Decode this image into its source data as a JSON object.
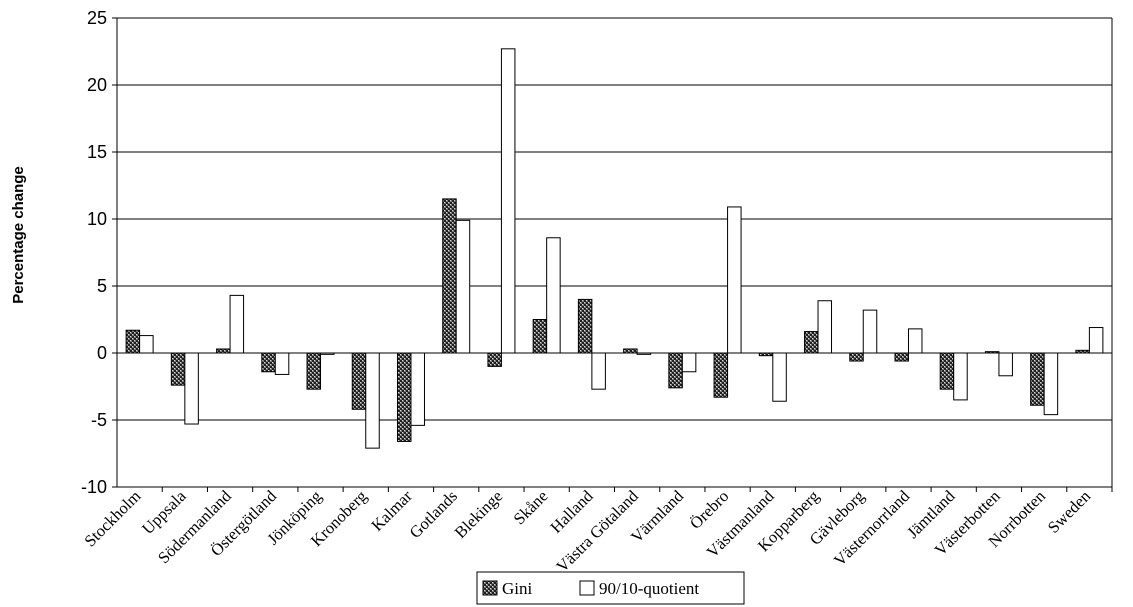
{
  "chart_data": {
    "type": "bar",
    "title": "",
    "xlabel": "",
    "ylabel": "Percentage change",
    "ylim": [
      -10,
      25
    ],
    "yticks": [
      -10,
      -5,
      0,
      5,
      10,
      15,
      20,
      25
    ],
    "grid": true,
    "legend_position": "bottom",
    "categories": [
      "Stockholm",
      "Uppsala",
      "Södermanland",
      "Östergötland",
      "Jönköping",
      "Kronoberg",
      "Kalmar",
      "Gotlands",
      "Blekinge",
      "Skåne",
      "Halland",
      "Västra Götaland",
      "Värmland",
      "Örebro",
      "Västmanland",
      "Kopparberg",
      "Gävleborg",
      "Västernorrland",
      "Jämtland",
      "Västerbotten",
      "Norrbotten",
      "Sweden"
    ],
    "series": [
      {
        "name": "Gini",
        "pattern": "crosshatch-dark",
        "values": [
          1.7,
          -2.4,
          0.3,
          -1.4,
          -2.7,
          -4.2,
          -6.6,
          11.5,
          -1.0,
          2.5,
          4.0,
          0.3,
          -2.6,
          -3.3,
          -0.2,
          1.6,
          -0.6,
          -0.6,
          -2.7,
          0.1,
          -3.9,
          0.2
        ]
      },
      {
        "name": "90/10-quotient",
        "pattern": "white",
        "values": [
          1.3,
          -5.3,
          4.3,
          -1.6,
          -0.1,
          -7.1,
          -5.4,
          9.9,
          22.7,
          8.6,
          -2.7,
          -0.1,
          -1.4,
          10.9,
          -3.6,
          3.9,
          3.2,
          1.8,
          -3.5,
          -1.7,
          -4.6,
          1.9
        ]
      }
    ]
  }
}
